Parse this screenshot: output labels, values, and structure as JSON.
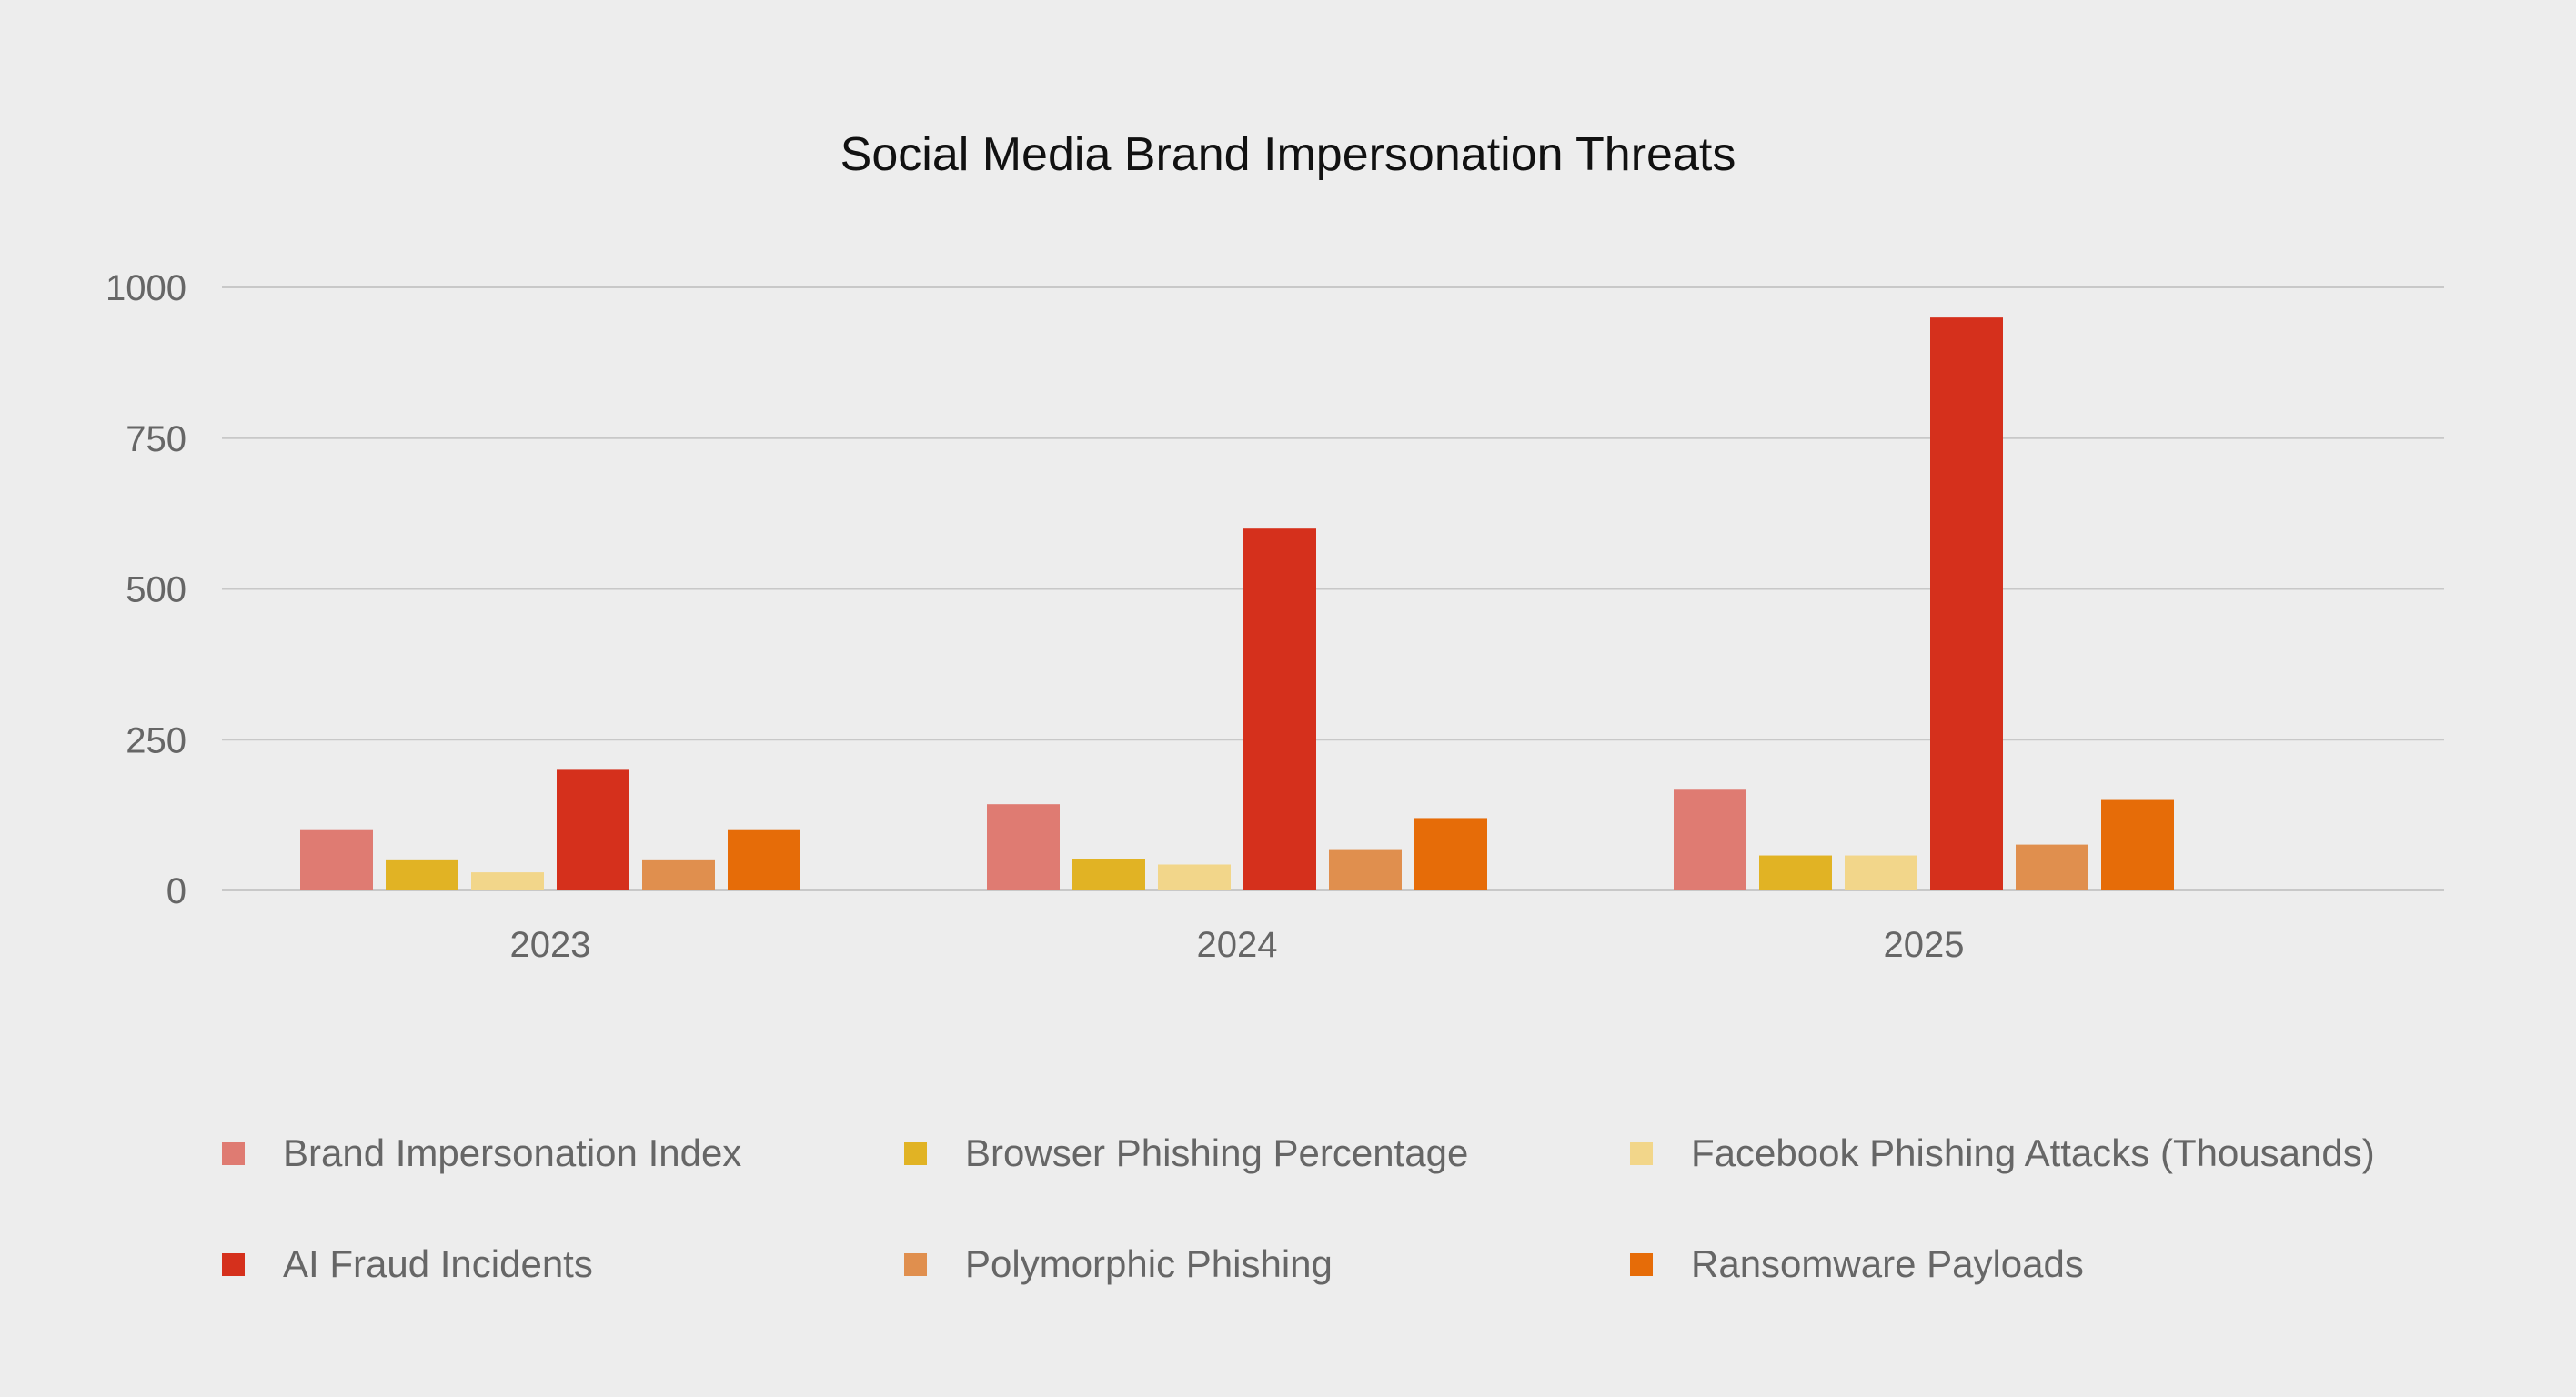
{
  "chart_data": {
    "type": "bar",
    "title": "Social Media Brand Impersonation Threats",
    "xlabel": "",
    "ylabel": "",
    "categories": [
      "2023",
      "2024",
      "2025"
    ],
    "ylim": [
      0,
      1000
    ],
    "yticks": [
      "0",
      "250",
      "500",
      "750",
      "1000"
    ],
    "grid": true,
    "legend_position": "bottom",
    "series": [
      {
        "name": "Brand Impersonation Index",
        "color": "#df7b72",
        "values": [
          100,
          143,
          167
        ]
      },
      {
        "name": "Browser Phishing Percentage",
        "color": "#e1b324",
        "values": [
          50,
          52,
          58
        ]
      },
      {
        "name": "Facebook Phishing Attacks (Thousands)",
        "color": "#f2d68a",
        "values": [
          30,
          43,
          58
        ]
      },
      {
        "name": "AI Fraud Incidents",
        "color": "#d5301c",
        "values": [
          200,
          600,
          950
        ]
      },
      {
        "name": "Polymorphic Phishing",
        "color": "#e08f4e",
        "values": [
          50,
          67,
          76
        ]
      },
      {
        "name": "Ransomware Payloads",
        "color": "#e66c08",
        "values": [
          100,
          120,
          150
        ]
      }
    ]
  }
}
